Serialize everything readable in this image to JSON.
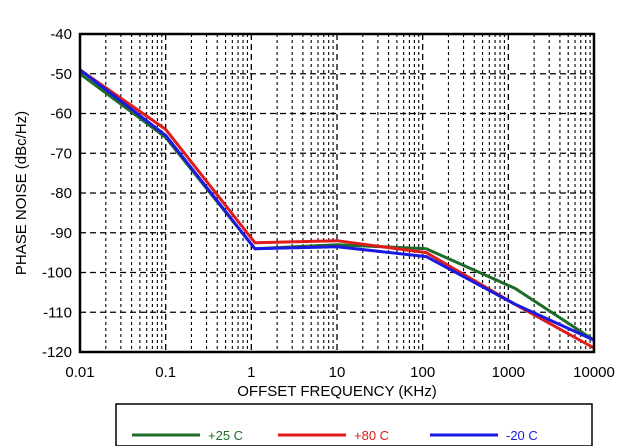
{
  "chart_data": {
    "type": "line",
    "title": "",
    "xlabel": "OFFSET FREQUENCY (KHz)",
    "ylabel": "PHASE NOISE (dBc/Hz)",
    "x_scale": "log",
    "xlim": [
      0.01,
      10000
    ],
    "ylim": [
      -120,
      -40
    ],
    "x_ticks": [
      0.01,
      0.1,
      1,
      10,
      100,
      1000,
      10000
    ],
    "x_tick_labels": [
      "0.01",
      "0.1",
      "1",
      "10",
      "100",
      "1000",
      "10000"
    ],
    "y_ticks": [
      -40,
      -50,
      -60,
      -70,
      -80,
      -90,
      -100,
      -110,
      -120
    ],
    "y_tick_labels": [
      "-40",
      "-50",
      "-60",
      "-70",
      "-80",
      "-90",
      "-100",
      "-110",
      "-120"
    ],
    "grid": true,
    "legend_position": "bottom",
    "series": [
      {
        "name": "+25 C",
        "color": "#1e6b2a",
        "x": [
          0.01,
          0.1,
          1.1,
          10,
          110,
          1200,
          10000
        ],
        "y": [
          -50,
          -66,
          -94,
          -93,
          -94,
          -104,
          -117
        ]
      },
      {
        "name": "+80 C",
        "color": "#e01b1b",
        "x": [
          0.01,
          0.1,
          1.1,
          10,
          110,
          1200,
          10000
        ],
        "y": [
          -49,
          -64,
          -92.5,
          -92,
          -95,
          -108,
          -119
        ]
      },
      {
        "name": "-20 C",
        "color": "#1a1ae0",
        "x": [
          0.01,
          0.1,
          1.1,
          10,
          110,
          1200,
          10000
        ],
        "y": [
          -49,
          -65.5,
          -94,
          -93.5,
          -96,
          -108,
          -117
        ]
      }
    ]
  }
}
